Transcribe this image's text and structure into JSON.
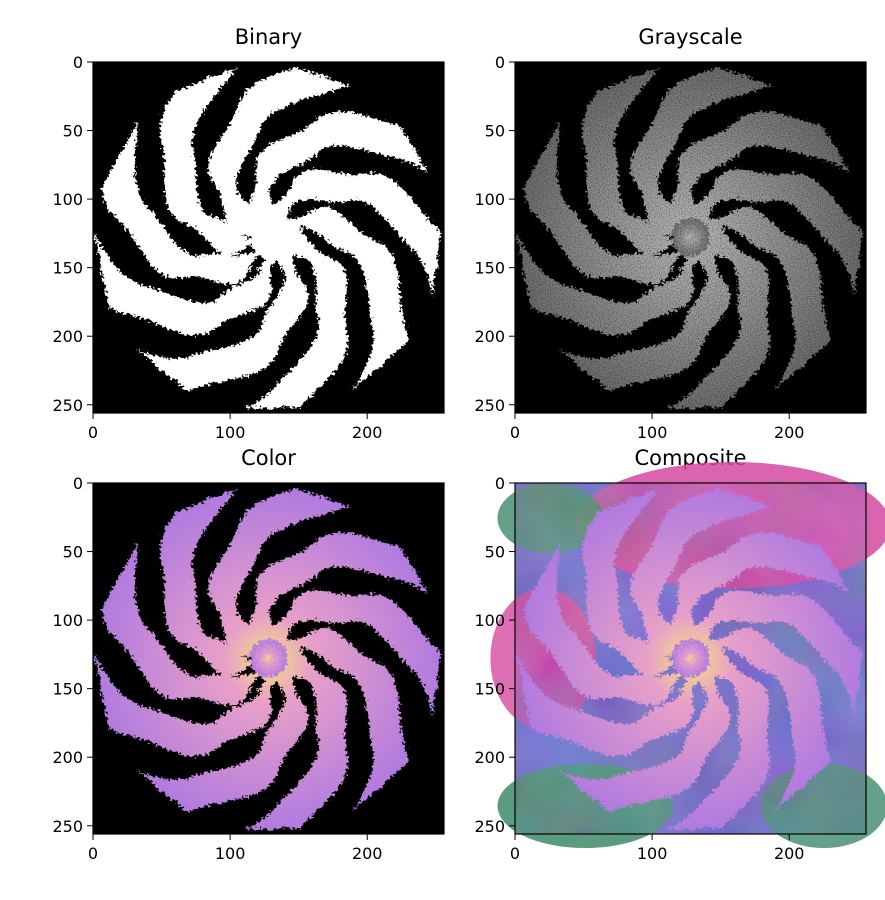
{
  "figure": {
    "background": "#ffffff"
  },
  "chart_data": [
    {
      "type": "heatmap",
      "title": "Binary",
      "colormap": "binary (black background, white fractal)",
      "xlim": [
        0,
        256
      ],
      "ylim": [
        256,
        0
      ],
      "xticks": [
        "0",
        "100",
        "200"
      ],
      "yticks": [
        "0",
        "50",
        "100",
        "150",
        "200",
        "250"
      ],
      "content": "Julia-set fractal spiral, 9 arms",
      "colors": {
        "background": "#000000",
        "fractal": "#ffffff"
      }
    },
    {
      "type": "heatmap",
      "title": "Grayscale",
      "colormap": "gray",
      "xlim": [
        0,
        256
      ],
      "ylim": [
        256,
        0
      ],
      "xticks": [
        "0",
        "100",
        "200"
      ],
      "yticks": [
        "0",
        "50",
        "100",
        "150",
        "200",
        "250"
      ],
      "content": "Julia-set fractal spiral, 9 arms",
      "colors": {
        "background": "#000000",
        "fractal": "#8a8a8a"
      }
    },
    {
      "type": "heatmap",
      "title": "Color",
      "colormap": "purple-pink-yellow",
      "xlim": [
        0,
        256
      ],
      "ylim": [
        256,
        0
      ],
      "xticks": [
        "0",
        "100",
        "200"
      ],
      "yticks": [
        "0",
        "50",
        "100",
        "150",
        "200",
        "250"
      ],
      "content": "Julia-set fractal spiral, 9 arms",
      "colors": {
        "background": "#000000",
        "fractal": "#b07ae0",
        "highlight": "#f0d070"
      }
    },
    {
      "type": "heatmap",
      "title": "Composite",
      "colormap": "fractal over noise background",
      "xlim": [
        0,
        256
      ],
      "ylim": [
        256,
        0
      ],
      "xticks": [
        "0",
        "100",
        "200"
      ],
      "yticks": [
        "0",
        "50",
        "100",
        "150",
        "200",
        "250"
      ],
      "content": "Julia-set fractal spiral over cloudy background",
      "colors": {
        "background_blue": "#6a66c8",
        "background_pink": "#d44aa0",
        "background_green": "#3e8a6a",
        "fractal": "#b07ae0",
        "highlight": "#f0d070"
      }
    }
  ]
}
